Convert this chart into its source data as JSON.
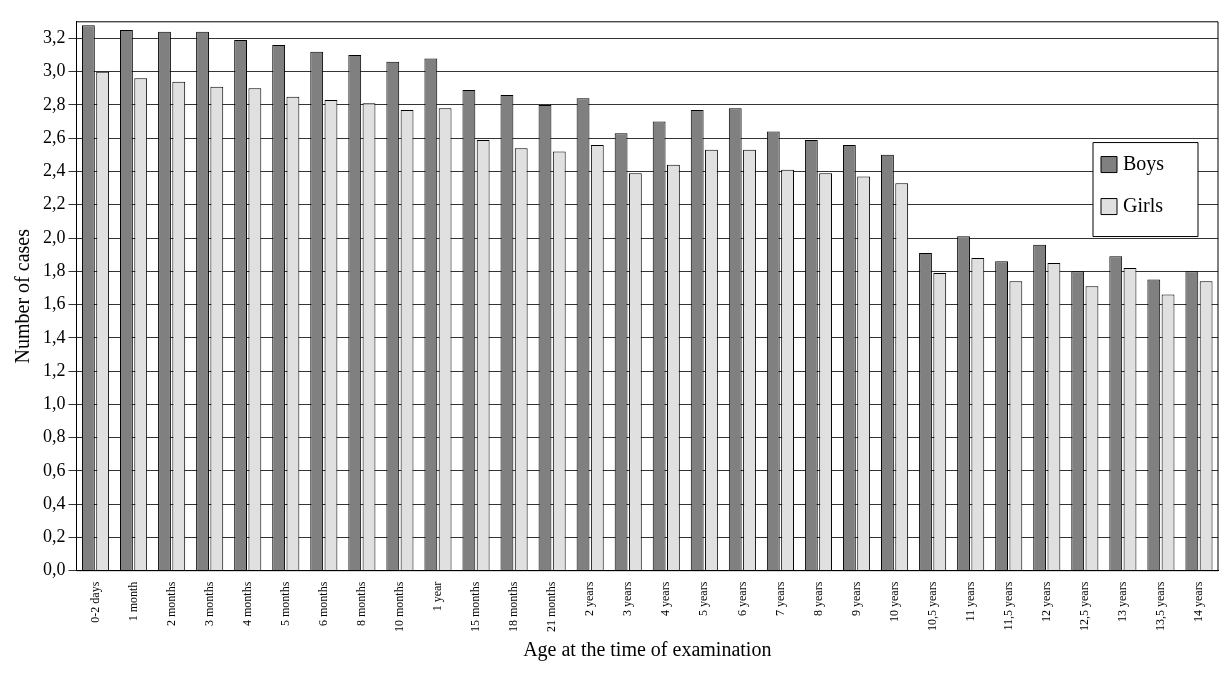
{
  "chart_data": {
    "type": "bar",
    "xlabel": "Age at the time of examination",
    "ylabel": "Number of cases",
    "categories": [
      "0-2 days",
      "1 month",
      "2 months",
      "3 months",
      "4 months",
      "5 months",
      "6 months",
      "8 months",
      "10 months",
      "1 year",
      "15 months",
      "18 months",
      "21 months",
      "2 years",
      "3 years",
      "4 years",
      "5 years",
      "6 years",
      "7 years",
      "8 years",
      "9 years",
      "10 years",
      "10,5 years",
      "11 years",
      "11,5 years",
      "12 years",
      "12,5 years",
      "13 years",
      "13,5 years",
      "14 years"
    ],
    "series": [
      {
        "name": "Boys",
        "color": "#808080",
        "values": [
          3.28,
          3.25,
          3.24,
          3.24,
          3.19,
          3.16,
          3.12,
          3.1,
          3.06,
          3.08,
          2.89,
          2.86,
          2.8,
          2.84,
          2.63,
          2.7,
          2.77,
          2.78,
          2.64,
          2.59,
          2.56,
          2.5,
          1.91,
          2.01,
          1.86,
          1.96,
          1.8,
          1.89,
          1.75,
          1.8
        ]
      },
      {
        "name": "Girls",
        "color": "#e0e0e0",
        "values": [
          3.0,
          2.96,
          2.94,
          2.91,
          2.9,
          2.85,
          2.83,
          2.81,
          2.77,
          2.78,
          2.59,
          2.54,
          2.52,
          2.56,
          2.39,
          2.44,
          2.53,
          2.53,
          2.41,
          2.39,
          2.37,
          2.33,
          1.79,
          1.88,
          1.74,
          1.85,
          1.71,
          1.82,
          1.66,
          1.74
        ]
      }
    ],
    "ylim": [
      0,
      3.3
    ],
    "yticks": [
      {
        "value": 0,
        "label": "0,0"
      },
      {
        "value": 0.2,
        "label": "0,2"
      },
      {
        "value": 0.4,
        "label": "0,4"
      },
      {
        "value": 0.6,
        "label": "0,6"
      },
      {
        "value": 0.8,
        "label": "0,8"
      },
      {
        "value": 1,
        "label": "1,0"
      },
      {
        "value": 1.2,
        "label": "1,2"
      },
      {
        "value": 1.4,
        "label": "1,4"
      },
      {
        "value": 1.6,
        "label": "1,6"
      },
      {
        "value": 1.8,
        "label": "1,8"
      },
      {
        "value": 2,
        "label": "2,0"
      },
      {
        "value": 2.2,
        "label": "2,2"
      },
      {
        "value": 2.4,
        "label": "2,4"
      },
      {
        "value": 2.6,
        "label": "2,6"
      },
      {
        "value": 2.8,
        "label": "2,8"
      },
      {
        "value": 3,
        "label": "3,0"
      },
      {
        "value": 3.2,
        "label": "3,2"
      }
    ],
    "grid": "y",
    "legend": "right"
  }
}
